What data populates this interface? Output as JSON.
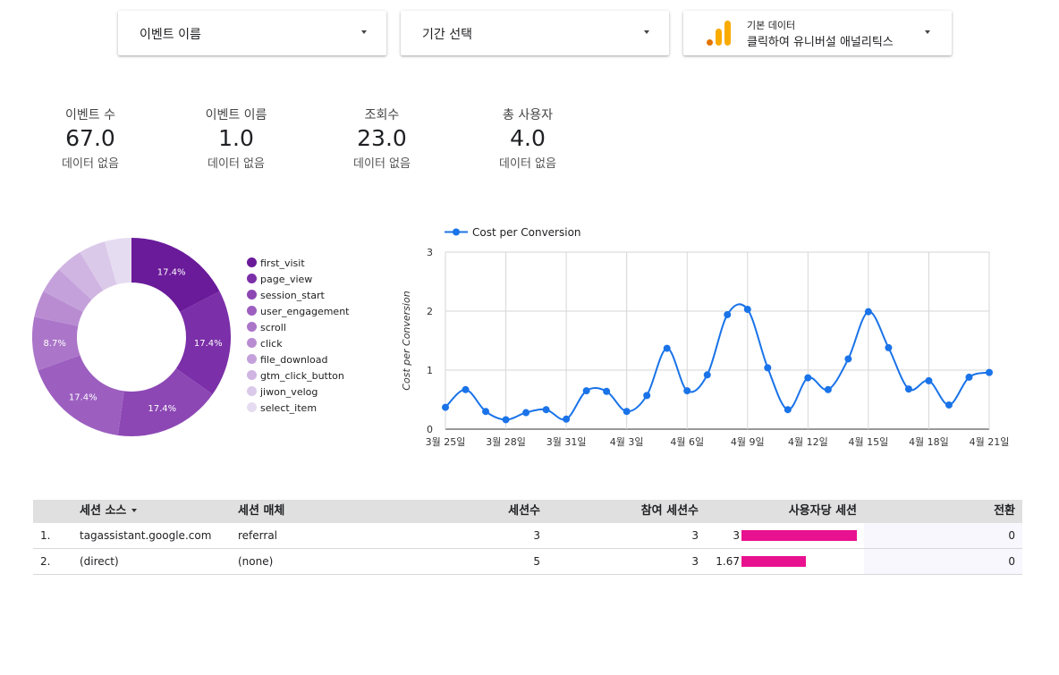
{
  "filters": {
    "event_name": {
      "label": "이벤트 이름"
    },
    "date_range": {
      "label": "기간 선택"
    },
    "data_source": {
      "top_label": "기본 데이터",
      "value": "클릭하여 유니버설 애널리틱스"
    },
    "colors": {
      "ga_orange_dark": "#e37400",
      "ga_orange_light": "#f9ab00"
    }
  },
  "scorecards": [
    {
      "label": "이벤트 수",
      "value": "67.0",
      "note": "데이터 없음"
    },
    {
      "label": "이벤트 이름",
      "value": "1.0",
      "note": "데이터 없음"
    },
    {
      "label": "조회수",
      "value": "23.0",
      "note": "데이터 없음"
    },
    {
      "label": "총 사용자",
      "value": "4.0",
      "note": "데이터 없음"
    }
  ],
  "chart_data": [
    {
      "type": "pie",
      "variant": "donut",
      "slices": [
        {
          "label": "first_visit",
          "value": 17.4,
          "display": "17.4%",
          "color": "#6a1b9a"
        },
        {
          "label": "page_view",
          "value": 17.4,
          "display": "17.4%",
          "color": "#7b2fa8"
        },
        {
          "label": "session_start",
          "value": 17.4,
          "display": "17.4%",
          "color": "#8c47b4"
        },
        {
          "label": "user_engagement",
          "value": 17.4,
          "display": "17.4%",
          "color": "#9c5fc0"
        },
        {
          "label": "scroll",
          "value": 8.7,
          "display": "8.7%",
          "color": "#ab76c9"
        },
        {
          "label": "click",
          "value": 4.35,
          "display": "",
          "color": "#b98cd2"
        },
        {
          "label": "file_download",
          "value": 4.35,
          "display": "",
          "color": "#c4a1da"
        },
        {
          "label": "gtm_click_button",
          "value": 4.35,
          "display": "",
          "color": "#d0b5e2"
        },
        {
          "label": "jiwon_velog",
          "value": 4.35,
          "display": "",
          "color": "#dbc9ea"
        },
        {
          "label": "select_item",
          "value": 4.35,
          "display": "",
          "color": "#e6dcf1"
        }
      ]
    },
    {
      "type": "line",
      "series": [
        {
          "name": "Cost per Conversion",
          "color": "#1a73e8",
          "values": [
            0.37,
            0.67,
            0.3,
            0.16,
            0.28,
            0.33,
            0.17,
            0.65,
            0.64,
            0.3,
            0.57,
            1.37,
            0.65,
            0.92,
            1.94,
            2.03,
            1.04,
            0.33,
            0.87,
            0.67,
            1.19,
            1.99,
            1.38,
            0.68,
            0.82,
            0.41,
            0.88,
            0.96
          ]
        }
      ],
      "x_tick_labels": [
        "3월 25일",
        "3월 28일",
        "3월 31일",
        "4월 3일",
        "4월 6일",
        "4월 9일",
        "4월 12일",
        "4월 15일",
        "4월 18일",
        "4월 21일"
      ],
      "x_tick_every": 3,
      "ylabel": "Cost per Conversion",
      "ylim": [
        0,
        3
      ],
      "y_ticks": [
        "0",
        "1",
        "2",
        "3"
      ],
      "grid": true,
      "legend": "top-left"
    }
  ],
  "table": {
    "columns": [
      "세션 소스",
      "세션 매체",
      "세션수",
      "참여 세션수",
      "사용자당 세션",
      "전환"
    ],
    "rows": [
      {
        "index": "1.",
        "source": "tagassistant.google.com",
        "medium": "referral",
        "sessions": "3",
        "engaged": "3",
        "per_user": "3",
        "per_user_value": 3,
        "conversions": "0"
      },
      {
        "index": "2.",
        "source": "(direct)",
        "medium": "(none)",
        "sessions": "5",
        "engaged": "3",
        "per_user": "1.67",
        "per_user_value": 1.67,
        "conversions": "0"
      }
    ],
    "bar_color": "#e8118f",
    "bar_max": 3
  }
}
